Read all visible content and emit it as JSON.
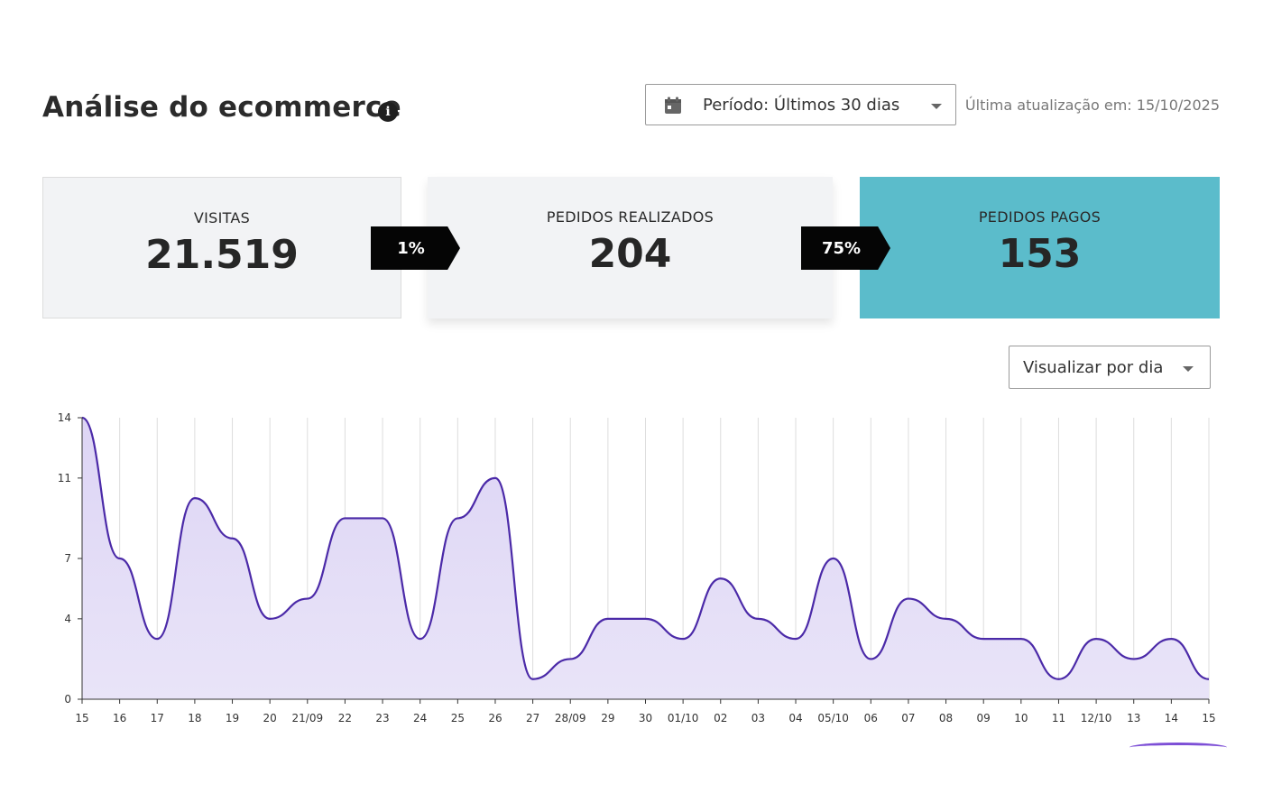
{
  "header": {
    "title": "Análise do ecommerce",
    "info_icon": "info-icon",
    "period_label": "Período: Últimos 30 dias",
    "period_icon": "calendar-icon",
    "last_update": "Última atualização em: 15/10/2025"
  },
  "kpis": {
    "visitas": {
      "label": "VISITAS",
      "value": "21.519"
    },
    "rate_1": "1%",
    "realizados": {
      "label": "PEDIDOS REALIZADOS",
      "value": "204"
    },
    "rate_2": "75%",
    "pagos": {
      "label": "PEDIDOS PAGOS",
      "value": "153"
    }
  },
  "view_select": {
    "label": "Visualizar por dia"
  },
  "colors": {
    "line": "#4b2aa8",
    "area": "#e9e4f8",
    "highlight_card": "#5bbccb",
    "card_bg": "#f2f3f5"
  },
  "chart_data": {
    "type": "area",
    "x": [
      "15",
      "16",
      "17",
      "18",
      "19",
      "20",
      "21/09",
      "22",
      "23",
      "24",
      "25",
      "26",
      "27",
      "28/09",
      "29",
      "30",
      "01/10",
      "02",
      "03",
      "04",
      "05/10",
      "06",
      "07",
      "08",
      "09",
      "10",
      "11",
      "12/10",
      "13",
      "14",
      "15"
    ],
    "values": [
      14,
      7,
      3,
      10,
      8,
      4,
      5,
      9,
      9,
      3,
      9,
      11,
      1,
      2,
      4,
      4,
      3,
      6,
      4,
      3,
      7,
      2,
      5,
      4,
      3,
      3,
      1,
      3,
      2,
      3,
      1
    ],
    "yticks": [
      0,
      4,
      7,
      11,
      14
    ],
    "ylim": [
      0,
      14
    ],
    "grid": "vertical",
    "title": "",
    "xlabel": "",
    "ylabel": ""
  }
}
